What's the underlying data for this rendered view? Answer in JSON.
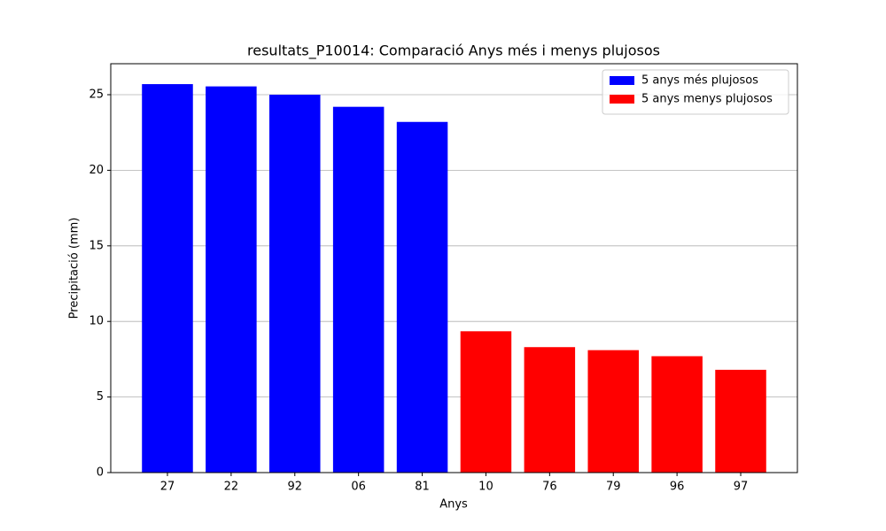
{
  "chart_data": {
    "type": "bar",
    "title": "resultats_P10014: Comparació Anys més i menys plujosos",
    "x_label": "Anys",
    "y_label": "Precipitació (mm)",
    "categories": [
      "27",
      "22",
      "92",
      "06",
      "81",
      "10",
      "76",
      "79",
      "96",
      "97"
    ],
    "series": [
      {
        "name": "5 anys més plujosos",
        "color": "#0000ff",
        "values": [
          25.7,
          25.55,
          25.0,
          24.2,
          23.2,
          null,
          null,
          null,
          null,
          null
        ]
      },
      {
        "name": "5 anys menys plujosos",
        "color": "#ff0000",
        "values": [
          null,
          null,
          null,
          null,
          null,
          9.35,
          8.3,
          8.1,
          7.7,
          6.8
        ]
      }
    ],
    "ylim": [
      0,
      27.05
    ],
    "yticks": [
      0,
      5,
      10,
      15,
      20,
      25
    ],
    "grid": "y",
    "legend": "upper right"
  }
}
